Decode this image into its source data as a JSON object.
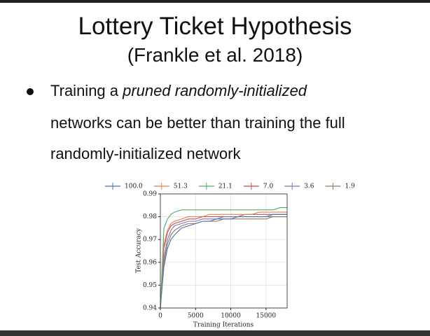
{
  "slide": {
    "title": "Lottery Ticket Hypothesis",
    "subtitle": "(Frankle et al. 2018)",
    "bullet": {
      "line1": [
        "Training a ",
        "pruned randomly-initialized"
      ],
      "line2": "networks can be better than training the full",
      "line3": "randomly-initialized network"
    }
  },
  "chart_data": {
    "type": "line",
    "xlabel": "Training Iterations",
    "ylabel": "Test Accuracy",
    "x": [
      0,
      500,
      1000,
      1500,
      2000,
      3000,
      4000,
      5000,
      6000,
      7000,
      8000,
      9000,
      10000,
      11000,
      12000,
      13000,
      14000,
      15000,
      16000,
      17000,
      18000
    ],
    "series": [
      {
        "name": "7.0",
        "color": "#c44e52",
        "values": [
          0.94,
          0.966,
          0.973,
          0.976,
          0.977,
          0.978,
          0.979,
          0.979,
          0.98,
          0.98,
          0.98,
          0.98,
          0.98,
          0.98,
          0.981,
          0.981,
          0.981,
          0.981,
          0.981,
          0.981,
          0.981
        ]
      },
      {
        "name": "3.6",
        "color": "#8172b3",
        "values": [
          0.94,
          0.962,
          0.97,
          0.974,
          0.976,
          0.977,
          0.978,
          0.978,
          0.979,
          0.979,
          0.979,
          0.98,
          0.98,
          0.98,
          0.98,
          0.98,
          0.98,
          0.98,
          0.98,
          0.98,
          0.98
        ]
      },
      {
        "name": "1.9",
        "color": "#937860",
        "values": [
          0.94,
          0.96,
          0.968,
          0.972,
          0.974,
          0.976,
          0.977,
          0.977,
          0.978,
          0.978,
          0.978,
          0.979,
          0.979,
          0.979,
          0.979,
          0.979,
          0.979,
          0.979,
          0.98,
          0.98,
          0.98
        ]
      },
      {
        "name": "100.0",
        "color": "#4c72b0",
        "values": [
          0.94,
          0.958,
          0.966,
          0.97,
          0.972,
          0.975,
          0.976,
          0.977,
          0.978,
          0.978,
          0.979,
          0.979,
          0.979,
          0.98,
          0.98,
          0.98,
          0.98,
          0.98,
          0.981,
          0.981,
          0.981
        ]
      },
      {
        "name": "51.3",
        "color": "#dd8452",
        "values": [
          0.94,
          0.968,
          0.974,
          0.977,
          0.978,
          0.979,
          0.98,
          0.98,
          0.98,
          0.981,
          0.981,
          0.981,
          0.981,
          0.981,
          0.981,
          0.981,
          0.982,
          0.982,
          0.982,
          0.982,
          0.982
        ]
      },
      {
        "name": "21.1",
        "color": "#55a868",
        "values": [
          0.94,
          0.975,
          0.979,
          0.981,
          0.982,
          0.983,
          0.983,
          0.983,
          0.983,
          0.983,
          0.983,
          0.983,
          0.983,
          0.983,
          0.983,
          0.983,
          0.983,
          0.983,
          0.983,
          0.984,
          0.984
        ]
      }
    ],
    "legend_order": [
      3,
      4,
      5,
      0,
      1,
      2
    ],
    "xlim": [
      0,
      18000
    ],
    "xticks": [
      0,
      5000,
      10000,
      15000
    ],
    "ylim": [
      0.94,
      0.99
    ],
    "yticks": [
      0.94,
      0.95,
      0.96,
      0.97,
      0.98,
      0.99
    ],
    "grid": true,
    "legend": "top"
  }
}
